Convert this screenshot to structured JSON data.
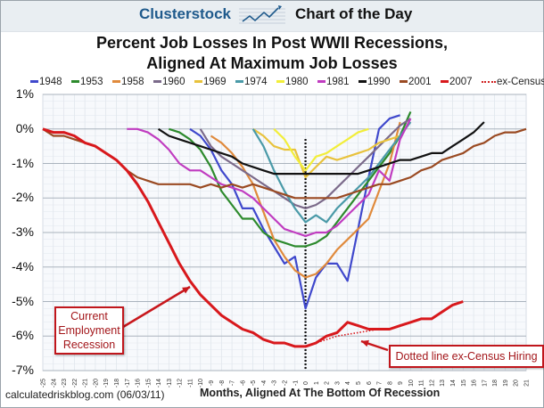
{
  "header": {
    "brand": "Clusterstock",
    "subtitle": "Chart of the Day",
    "logo_icon": "rising-chart-icon"
  },
  "footer": {
    "source": "calculatedriskblog.com (06/03/11)"
  },
  "annotations": {
    "current_recession": "Current Employment Recession",
    "current_recession_lines": [
      "Current",
      "Employment",
      "Recession"
    ],
    "census": "Dotted line ex-Census Hiring"
  },
  "chart_data": {
    "type": "line",
    "title": "Percent Job Losses In Post WWII Recessions, Aligned At Maximum Job Losses",
    "title_lines": [
      "Percent Job Losses In Post WWII Recessions,",
      "Aligned At Maximum Job Losses"
    ],
    "xlabel": "Months, Aligned At The Bottom Of Recession",
    "ylabel": "",
    "xlim": [
      -25,
      21
    ],
    "ylim": [
      -7,
      1
    ],
    "yticks": [
      "1%",
      "0%",
      "-1%",
      "-2%",
      "-3%",
      "-4%",
      "-5%",
      "-6%",
      "-7%"
    ],
    "ytick_values": [
      1,
      0,
      -1,
      -2,
      -3,
      -4,
      -5,
      -6,
      -7
    ],
    "xticks": [
      -25,
      -24,
      -23,
      -22,
      -21,
      -20,
      -19,
      -18,
      -17,
      -16,
      -15,
      -14,
      -13,
      -12,
      -11,
      -10,
      -9,
      -8,
      -7,
      -6,
      -5,
      -4,
      -3,
      -2,
      -1,
      0,
      1,
      2,
      3,
      4,
      5,
      6,
      7,
      8,
      9,
      10,
      11,
      12,
      13,
      14,
      15,
      16,
      17,
      18,
      19,
      20,
      21
    ],
    "grid": true,
    "minor_grid": true,
    "legend_position": "top",
    "vertical_marker": {
      "x": 0,
      "style": "dotted",
      "color": "#111111"
    },
    "series": [
      {
        "name": "1948",
        "color": "#3f48cc",
        "x": [
          -11,
          -10,
          -9,
          -8,
          -7,
          -6,
          -5,
          -4,
          -3,
          -2,
          -1,
          0,
          1,
          2,
          3,
          4,
          5,
          6,
          7,
          8,
          9
        ],
        "values": [
          0,
          -0.2,
          -0.6,
          -1.2,
          -1.6,
          -2.3,
          -2.3,
          -2.9,
          -3.4,
          -3.9,
          -3.7,
          -5.2,
          -4.3,
          -3.9,
          -3.9,
          -4.4,
          -2.9,
          -1.4,
          0.0,
          0.3,
          0.4
        ]
      },
      {
        "name": "1953",
        "color": "#2d8a2d",
        "x": [
          -13,
          -12,
          -11,
          -10,
          -9,
          -8,
          -7,
          -6,
          -5,
          -4,
          -3,
          -2,
          -1,
          0,
          1,
          2,
          3,
          4,
          5,
          6,
          7,
          8,
          9,
          10
        ],
        "values": [
          0,
          -0.1,
          -0.3,
          -0.6,
          -1.1,
          -1.8,
          -2.2,
          -2.6,
          -2.6,
          -3.0,
          -3.2,
          -3.3,
          -3.4,
          -3.4,
          -3.3,
          -3.1,
          -2.7,
          -2.3,
          -1.9,
          -1.5,
          -1.1,
          -0.7,
          -0.2,
          0.5
        ]
      },
      {
        "name": "1958",
        "color": "#e08a3c",
        "x": [
          -9,
          -8,
          -7,
          -6,
          -5,
          -4,
          -3,
          -2,
          -1,
          0,
          1,
          2,
          3,
          4,
          5,
          6,
          7,
          8,
          9
        ],
        "values": [
          -0.2,
          -0.4,
          -0.7,
          -1.1,
          -1.6,
          -2.4,
          -3.2,
          -3.7,
          -4.1,
          -4.3,
          -4.2,
          -3.9,
          -3.5,
          -3.2,
          -2.9,
          -2.6,
          -1.8,
          -1.0,
          0.2
        ]
      },
      {
        "name": "1960",
        "color": "#7b6a8a",
        "x": [
          -10,
          -9,
          -8,
          -7,
          -6,
          -5,
          -4,
          -3,
          -2,
          -1,
          0,
          1,
          2,
          3,
          4,
          5,
          6,
          7,
          8,
          9,
          10
        ],
        "values": [
          0,
          -0.5,
          -0.8,
          -1.0,
          -1.2,
          -1.4,
          -1.6,
          -1.8,
          -2.0,
          -2.2,
          -2.3,
          -2.2,
          -2.0,
          -1.7,
          -1.4,
          -1.1,
          -0.8,
          -0.5,
          -0.2,
          0.1,
          0.3
        ]
      },
      {
        "name": "1969",
        "color": "#e8c23c",
        "x": [
          -5,
          -4,
          -3,
          -2,
          -1,
          0,
          1,
          2,
          3,
          4,
          5,
          6,
          7,
          8,
          9
        ],
        "values": [
          0,
          -0.2,
          -0.5,
          -0.6,
          -0.6,
          -1.4,
          -1.1,
          -0.8,
          -0.9,
          -0.8,
          -0.7,
          -0.6,
          -0.4,
          -0.3,
          -0.2
        ]
      },
      {
        "name": "1974",
        "color": "#4a9aa8",
        "x": [
          -5,
          -4,
          -3,
          -2,
          -1,
          0,
          1,
          2,
          3,
          4,
          5,
          6,
          7,
          8,
          9,
          10
        ],
        "values": [
          0,
          -0.5,
          -1.2,
          -1.8,
          -2.3,
          -2.7,
          -2.5,
          -2.7,
          -2.3,
          -2.0,
          -1.7,
          -1.4,
          -1.0,
          -0.6,
          -0.2,
          0.2
        ]
      },
      {
        "name": "1980",
        "color": "#f2ee3a",
        "x": [
          -3,
          -2,
          -1,
          0,
          1,
          2,
          3,
          4,
          5,
          6
        ],
        "values": [
          0,
          -0.3,
          -0.8,
          -1.2,
          -0.8,
          -0.7,
          -0.5,
          -0.3,
          -0.1,
          0.0
        ]
      },
      {
        "name": "1981",
        "color": "#c03cc0",
        "x": [
          -17,
          -16,
          -15,
          -14,
          -13,
          -12,
          -11,
          -10,
          -9,
          -8,
          -7,
          -6,
          -5,
          -4,
          -3,
          -2,
          -1,
          0,
          1,
          2,
          3,
          4,
          5,
          6,
          7,
          8,
          9,
          10
        ],
        "values": [
          0,
          0,
          -0.1,
          -0.3,
          -0.6,
          -1.0,
          -1.2,
          -1.2,
          -1.4,
          -1.6,
          -1.7,
          -1.8,
          -2.0,
          -2.3,
          -2.6,
          -2.9,
          -3.0,
          -3.1,
          -3.0,
          -3.0,
          -2.8,
          -2.5,
          -2.2,
          -1.9,
          -1.2,
          -1.5,
          -0.3,
          0.3
        ]
      },
      {
        "name": "1990",
        "color": "#111111",
        "x": [
          -14,
          -13,
          -12,
          -11,
          -10,
          -9,
          -8,
          -7,
          -6,
          -5,
          -4,
          -3,
          -2,
          -1,
          0,
          1,
          2,
          3,
          4,
          5,
          6,
          7,
          8,
          9,
          10,
          11,
          12,
          13,
          14,
          15,
          16,
          17
        ],
        "values": [
          0,
          -0.2,
          -0.3,
          -0.4,
          -0.5,
          -0.6,
          -0.7,
          -0.8,
          -1.0,
          -1.1,
          -1.2,
          -1.3,
          -1.3,
          -1.3,
          -1.3,
          -1.3,
          -1.3,
          -1.3,
          -1.3,
          -1.3,
          -1.2,
          -1.1,
          -1.0,
          -0.9,
          -0.9,
          -0.8,
          -0.7,
          -0.7,
          -0.5,
          -0.3,
          -0.1,
          0.2
        ]
      },
      {
        "name": "2001",
        "color": "#9a4a22",
        "x": [
          -25,
          -24,
          -23,
          -22,
          -21,
          -20,
          -19,
          -18,
          -17,
          -16,
          -15,
          -14,
          -13,
          -12,
          -11,
          -10,
          -9,
          -8,
          -7,
          -6,
          -5,
          -4,
          -3,
          -2,
          -1,
          0,
          1,
          2,
          3,
          4,
          5,
          6,
          7,
          8,
          9,
          10,
          11,
          12,
          13,
          14,
          15,
          16,
          17,
          18,
          19,
          20,
          21
        ],
        "values": [
          0,
          -0.2,
          -0.2,
          -0.3,
          -0.4,
          -0.5,
          -0.7,
          -0.9,
          -1.2,
          -1.4,
          -1.5,
          -1.6,
          -1.6,
          -1.6,
          -1.6,
          -1.7,
          -1.6,
          -1.7,
          -1.6,
          -1.7,
          -1.6,
          -1.7,
          -1.8,
          -1.9,
          -2.0,
          -2.0,
          -2.0,
          -2.0,
          -2.0,
          -1.9,
          -1.8,
          -1.7,
          -1.6,
          -1.6,
          -1.5,
          -1.4,
          -1.2,
          -1.1,
          -0.9,
          -0.8,
          -0.7,
          -0.5,
          -0.4,
          -0.2,
          -0.1,
          -0.1,
          0.0
        ]
      },
      {
        "name": "2007",
        "color": "#d8181c",
        "x": [
          -25,
          -24,
          -23,
          -22,
          -21,
          -20,
          -19,
          -18,
          -17,
          -16,
          -15,
          -14,
          -13,
          -12,
          -11,
          -10,
          -9,
          -8,
          -7,
          -6,
          -5,
          -4,
          -3,
          -2,
          -1,
          0,
          1,
          2,
          3,
          4,
          5,
          6,
          7,
          8,
          9,
          10,
          11,
          12,
          13,
          14,
          15
        ],
        "values": [
          0,
          -0.1,
          -0.1,
          -0.2,
          -0.4,
          -0.5,
          -0.7,
          -0.9,
          -1.2,
          -1.6,
          -2.1,
          -2.7,
          -3.3,
          -3.9,
          -4.4,
          -4.8,
          -5.1,
          -5.4,
          -5.6,
          -5.8,
          -5.9,
          -6.1,
          -6.2,
          -6.2,
          -6.3,
          -6.3,
          -6.2,
          -6.0,
          -5.9,
          -5.6,
          -5.7,
          -5.8,
          -5.8,
          -5.8,
          -5.7,
          -5.6,
          -5.5,
          -5.5,
          -5.3,
          -5.1,
          -5.0
        ]
      },
      {
        "name": "ex-Census",
        "color": "#d8181c",
        "style": "dotted",
        "x": [
          0,
          1,
          2,
          3,
          4,
          5,
          6,
          7
        ],
        "values": [
          -6.3,
          -6.2,
          -6.1,
          -6.0,
          -5.95,
          -5.9,
          -5.85,
          -5.8
        ]
      }
    ]
  }
}
